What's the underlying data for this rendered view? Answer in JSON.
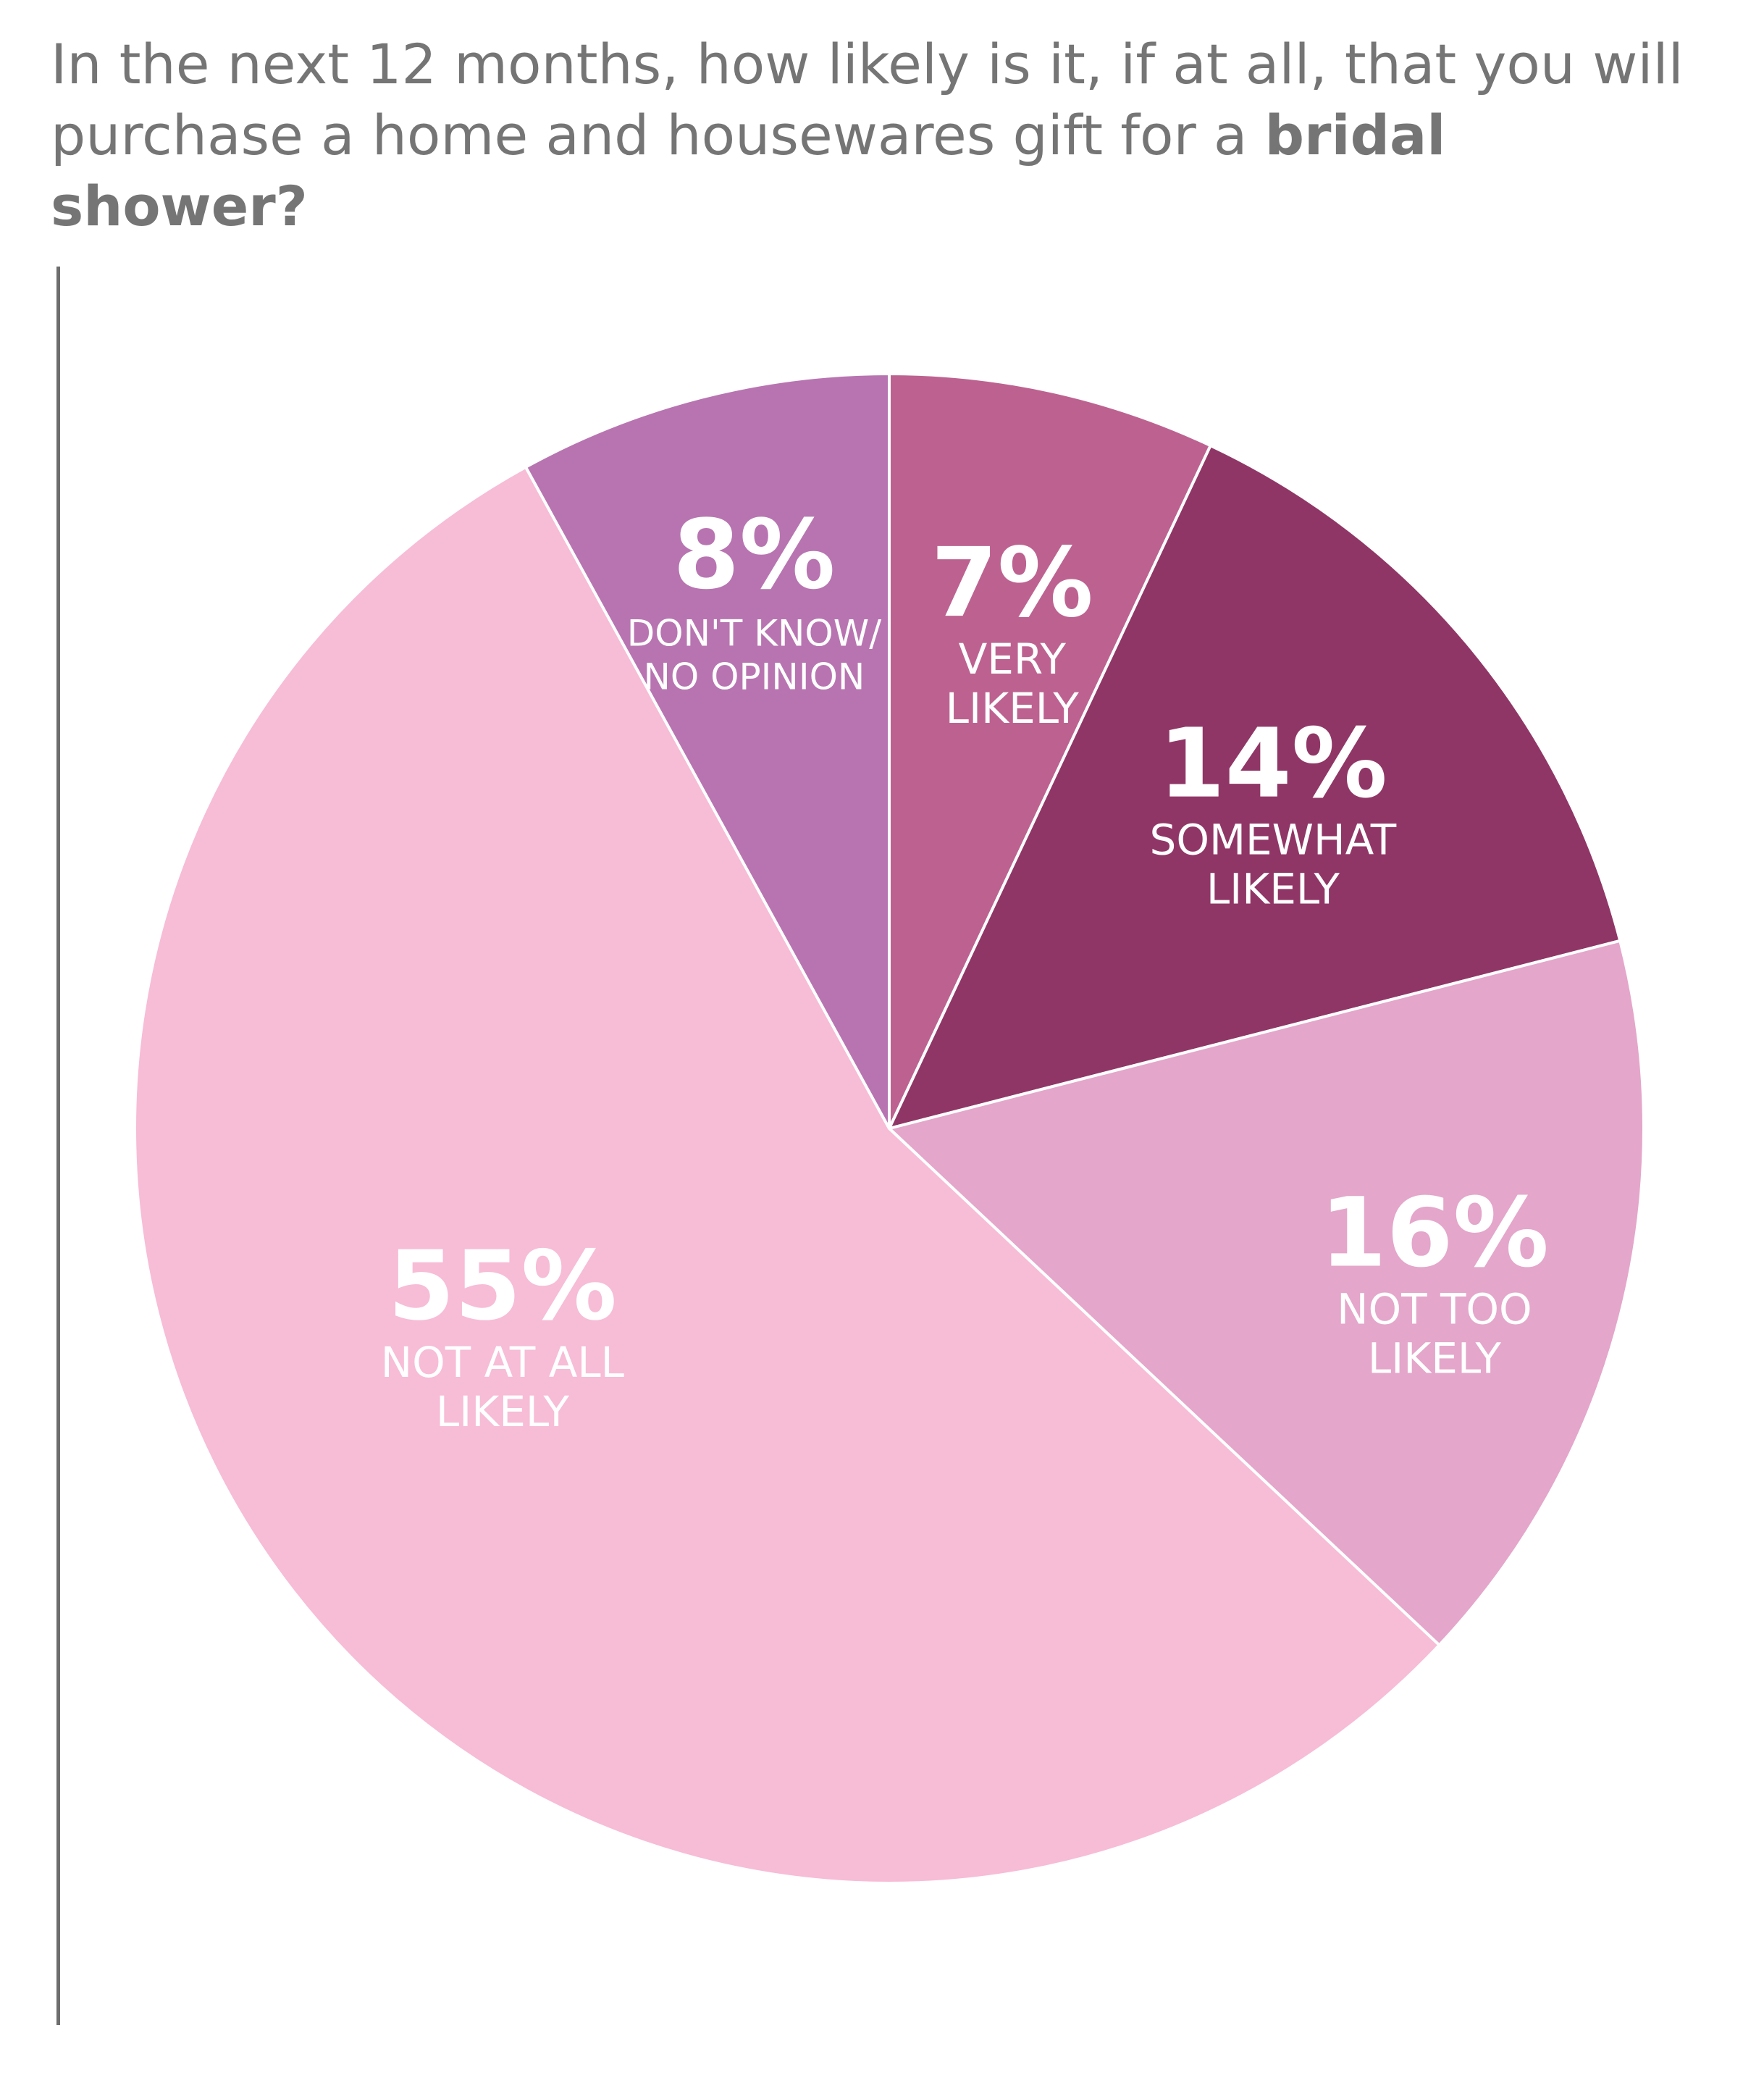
{
  "title": {
    "plain": "In the next 12 months, how likely is it, if at all, that you will purchase a home and housewares gift for a ",
    "bold": "bridal shower?"
  },
  "chart_data": {
    "type": "pie",
    "title": "In the next 12 months, how likely is it, if at all, that you will purchase a home and housewares gift for a bridal shower?",
    "start_angle": "12 o'clock",
    "direction": "clockwise",
    "slices": [
      {
        "label_lines": [
          "VERY",
          "LIKELY"
        ],
        "label": "VERY LIKELY",
        "value": 7,
        "display": "7%",
        "color": "#BD6290"
      },
      {
        "label_lines": [
          "SOMEWHAT",
          "LIKELY"
        ],
        "label": "SOMEWHAT LIKELY",
        "value": 14,
        "display": "14%",
        "color": "#903666"
      },
      {
        "label_lines": [
          "NOT TOO",
          "LIKELY"
        ],
        "label": "NOT TOO LIKELY",
        "value": 16,
        "display": "16%",
        "color": "#E4A6CA"
      },
      {
        "label_lines": [
          "NOT AT ALL",
          "LIKELY"
        ],
        "label": "NOT AT ALL LIKELY",
        "value": 55,
        "display": "55%",
        "color": "#F7BCD6"
      },
      {
        "label_lines": [
          "DON'T KNOW/",
          "NO OPINION"
        ],
        "label": "DON'T KNOW/ NO OPINION",
        "value": 8,
        "display": "8%",
        "color": "#B874B1"
      }
    ]
  }
}
